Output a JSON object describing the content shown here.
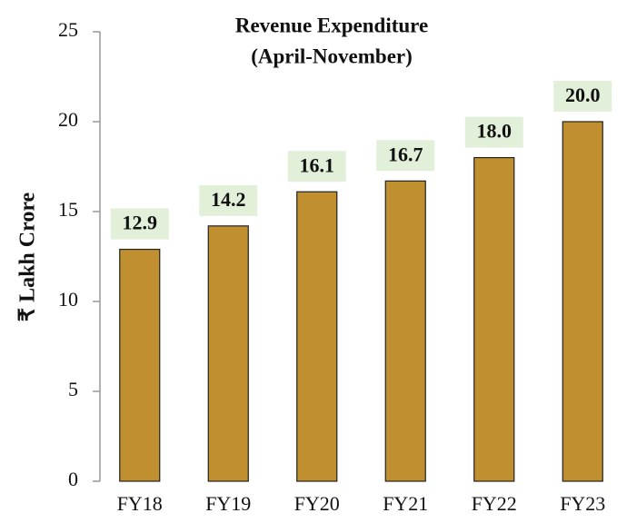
{
  "chart_data": {
    "type": "bar",
    "title": "Revenue Expenditure",
    "subtitle": "(April-November)",
    "y_label": "₹ Lakh Crore",
    "categories": [
      "FY18",
      "FY19",
      "FY20",
      "FY21",
      "FY22",
      "FY23"
    ],
    "values": [
      12.9,
      14.2,
      16.1,
      16.7,
      18,
      20
    ],
    "value_labels": [
      "12.9",
      "14.2",
      "16.1",
      "16.7",
      "18.0",
      "20.0"
    ],
    "color": "#bf8f30",
    "ylim": [
      0,
      25
    ],
    "yticks": [
      0,
      5,
      10,
      15,
      20,
      25
    ]
  }
}
